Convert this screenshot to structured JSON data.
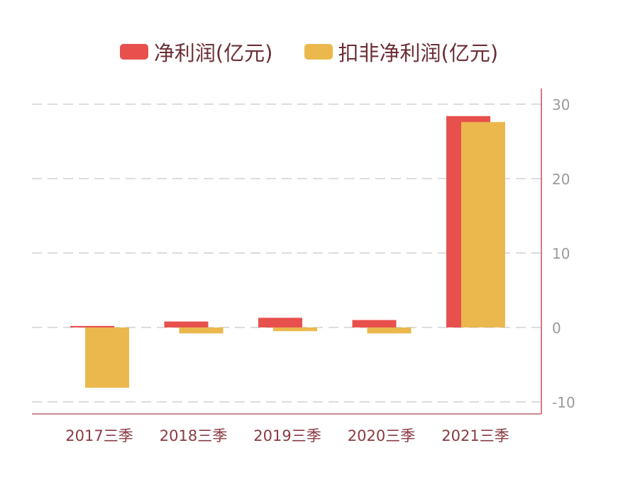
{
  "chart_data": {
    "type": "bar",
    "categories": [
      "2017三季",
      "2018三季",
      "2019三季",
      "2020三季",
      "2021三季"
    ],
    "series": [
      {
        "name": "净利润(亿元)",
        "color": "#e8504d",
        "values": [
          0.2,
          0.8,
          1.3,
          1.0,
          28.4
        ]
      },
      {
        "name": "扣非净利润(亿元)",
        "color": "#ebb84e",
        "values": [
          -8.1,
          -0.8,
          -0.5,
          -0.8,
          27.6
        ]
      }
    ],
    "yticks": [
      30,
      20,
      10,
      0,
      -10
    ],
    "ylim": [
      -11.5,
      31.5
    ],
    "y_axis_position": "right",
    "grid": true,
    "legend_position": "top"
  }
}
